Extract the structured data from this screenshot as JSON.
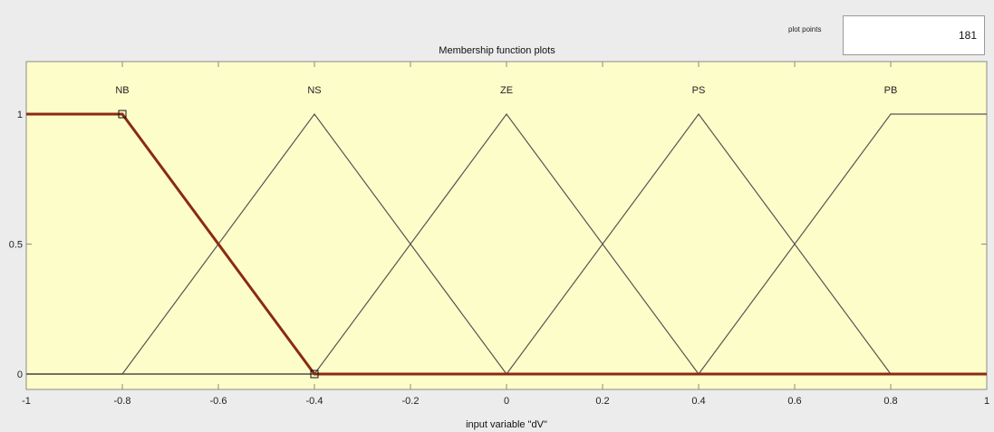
{
  "window": {
    "panel_title": "Membership function plots",
    "plot_points_label": "plot points",
    "plot_points_value": "181"
  },
  "chart_data": {
    "type": "line",
    "title": "",
    "xlabel": "input variable \"dV\"",
    "ylabel": "",
    "xlim": [
      -1,
      1
    ],
    "ylim": [
      0,
      1
    ],
    "x_ticks": [
      "-1",
      "-0.8",
      "-0.6",
      "-0.4",
      "-0.2",
      "0",
      "0.2",
      "0.4",
      "0.6",
      "0.8",
      "1"
    ],
    "y_ticks": [
      "0",
      "0.5",
      "1"
    ],
    "grid": false,
    "selected_series": "NB",
    "series": [
      {
        "name": "NB",
        "x": [
          -1,
          -0.8,
          -0.4,
          1
        ],
        "y": [
          1,
          1,
          0,
          0
        ]
      },
      {
        "name": "NS",
        "x": [
          -1,
          -0.8,
          -0.4,
          0,
          1
        ],
        "y": [
          0,
          0,
          1,
          0,
          0
        ]
      },
      {
        "name": "ZE",
        "x": [
          -1,
          -0.4,
          0,
          0.4,
          1
        ],
        "y": [
          0,
          0,
          1,
          0,
          0
        ]
      },
      {
        "name": "PS",
        "x": [
          -1,
          0,
          0.4,
          0.8,
          1
        ],
        "y": [
          0,
          0,
          1,
          0,
          0
        ]
      },
      {
        "name": "PB",
        "x": [
          -1,
          0.4,
          0.8,
          1
        ],
        "y": [
          0,
          0,
          1,
          1
        ]
      }
    ],
    "label_x": [
      -0.8,
      -0.4,
      0,
      0.4,
      0.8
    ],
    "colors": {
      "plot_background": "#fdfdc9",
      "line": "#555555",
      "selected_line": "#8b2a12",
      "selected_label": "#a0200c"
    }
  }
}
